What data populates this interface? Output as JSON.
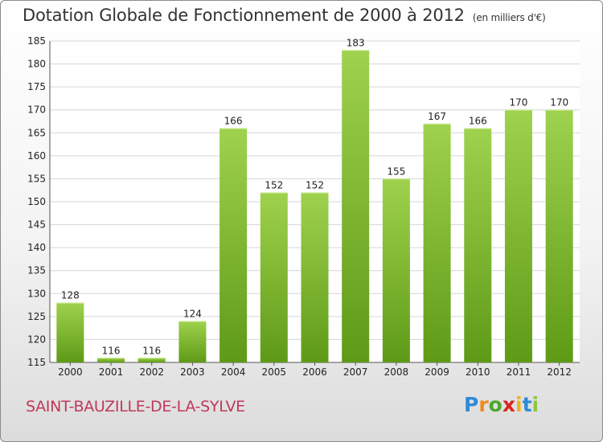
{
  "chart_data": {
    "type": "bar",
    "title": "Dotation Globale de Fonctionnement de 2000 à 2012",
    "subtitle": "(en milliers d'€)",
    "categories": [
      "2000",
      "2001",
      "2002",
      "2003",
      "2004",
      "2005",
      "2006",
      "2007",
      "2008",
      "2009",
      "2010",
      "2011",
      "2012"
    ],
    "values": [
      128,
      116,
      116,
      124,
      166,
      152,
      152,
      183,
      155,
      167,
      166,
      170,
      170
    ],
    "ylim": [
      115,
      185
    ],
    "yticks": [
      115,
      120,
      125,
      130,
      135,
      140,
      145,
      150,
      155,
      160,
      165,
      170,
      175,
      180,
      185
    ],
    "grid": true,
    "legend": "none",
    "colors": {
      "bar_top": "#9fd24e",
      "bar_bottom": "#5e9a16",
      "grid": "#d6d6d6"
    }
  },
  "footer": {
    "commune": "SAINT-BAUZILLE-DE-LA-SYLVE",
    "logo_letters": [
      "P",
      "r",
      "o",
      "x",
      "i",
      "t",
      "i"
    ],
    "logo_colors": [
      "#2e8bd6",
      "#f08a1c",
      "#4aa82a",
      "#d7261d",
      "#f0b41c",
      "#2e8bd6",
      "#8cc63f"
    ]
  }
}
